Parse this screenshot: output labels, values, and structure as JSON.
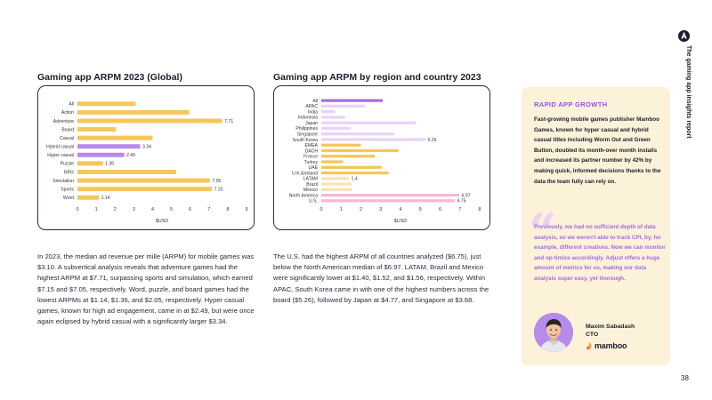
{
  "page": {
    "side_tab_label": "The gaming app insights report",
    "page_number": "38"
  },
  "charts_text": {
    "global_title": "Gaming app ARPM 2023 (Global)",
    "region_title": "Gaming app ARPM by region and country 2023"
  },
  "chart_data": [
    {
      "type": "bar",
      "orientation": "horizontal",
      "title": "Gaming app ARPM 2023 (Global)",
      "xlabel": "$USD",
      "xlim": [
        0,
        9
      ],
      "xticks": [
        0,
        1,
        2,
        3,
        4,
        5,
        6,
        7,
        8,
        9
      ],
      "grid": false,
      "categories": [
        "All",
        "Action",
        "Adventure",
        "Board",
        "Casual",
        "Hybrid casual",
        "Hyper casual",
        "Puzzle",
        "RPG",
        "Simulation",
        "Sports",
        "Word"
      ],
      "values": [
        3.1,
        5.95,
        7.71,
        2.05,
        4.0,
        3.34,
        2.49,
        1.36,
        5.25,
        7.05,
        7.15,
        1.14
      ],
      "labels": [
        "",
        "",
        "7.71",
        "",
        "",
        "3.34",
        "2.49",
        "1.36",
        "",
        "7.05",
        "7.15",
        "1.14"
      ],
      "colors": [
        "#f6c65a",
        "#f6c65a",
        "#f6c65a",
        "#f6c65a",
        "#f6c65a",
        "#b889ee",
        "#b889ee",
        "#f6c65a",
        "#f6c65a",
        "#f6c65a",
        "#f6c65a",
        "#f6c65a"
      ]
    },
    {
      "type": "bar",
      "orientation": "horizontal",
      "title": "Gaming app ARPM by region and country 2023",
      "xlabel": "$USD",
      "xlim": [
        0,
        8
      ],
      "xticks": [
        0,
        1,
        2,
        3,
        4,
        5,
        6,
        7,
        8
      ],
      "grid": false,
      "categories": [
        "All",
        "APAC",
        "India",
        "Indonesia",
        "Japan",
        "Philippines",
        "Singapore",
        "South Korea",
        "EMEA",
        "DACH",
        "France",
        "Turkey",
        "UAE",
        "U.K.&Ireland",
        "LATAM",
        "Brazil",
        "Mexico",
        "North America",
        "U.S."
      ],
      "values": [
        3.1,
        2.2,
        0.7,
        1.2,
        4.77,
        1.5,
        3.68,
        5.26,
        2.0,
        3.9,
        2.7,
        1.1,
        3.05,
        3.4,
        1.4,
        1.52,
        1.56,
        6.97,
        6.75
      ],
      "labels": [
        "",
        "",
        "",
        "",
        "",
        "",
        "",
        "5.26",
        "",
        "",
        "",
        "",
        "",
        "",
        "1.4",
        "",
        "",
        "6.97",
        "6.75"
      ],
      "colors": [
        "#a66ee8",
        "#e9d2f6",
        "#e9d2f6",
        "#e9d2f6",
        "#e9d2f6",
        "#e9d2f6",
        "#e9d2f6",
        "#e9d2f6",
        "#f6c65a",
        "#f6c65a",
        "#f6c65a",
        "#f6c65a",
        "#f6c65a",
        "#f6c65a",
        "#fbe2b0",
        "#fbe2b0",
        "#fbe2b0",
        "#f6b8d8",
        "#f6b8d8"
      ]
    }
  ],
  "paragraphs": {
    "global": "In 2023, the median ad revenue per mille (ARPM) for mobile games was $3.10. A subvertical analysis reveals that adventure games had the highest ARPM at $7.71, surpassing sports and simulation, which earned $7.15 and $7.05, respectively. Word, puzzle, and board games had the lowest ARPMs at $1.14, $1.36, and $2.05, respectively. Hyper casual games, known for high ad engagement, came in at $2.49, but were once again eclipsed by hybrid casual with a significantly larger $3.34.",
    "region": "The U.S. had the highest ARPM of all countries analyzed ($6.75), just below the North American median of $6.97. LATAM, Brazil and Mexico were significantly lower at $1.40, $1.52, and $1.56, respectively. Within APAC, South Korea came in with one of the highest numbers across the board ($5.26), followed by Japan at $4.77, and Singapore at $3.68."
  },
  "sidebar": {
    "heading": "RAPID APP GROWTH",
    "body": "Fast-growing mobile games publisher Mamboo Games, known for hyper casual and hybrid casual titles including Worm Out and Green Button, doubled its month-over month installs and increased its partner number by 42% by making quick, informed decisions thanks to the data the team fully can rely on.",
    "quote_mark": "“",
    "quote": "Previously, we had no sufficient depth of data analysis, so we weren't able to track CPI, by, for example, different creatives. Now we can monitor and op-timize accordingly. Adjust offers a huge amount of metrics for us, making our data analysis super easy, yet thorough.",
    "person_name": "Maxim Sabadash",
    "person_title": "CTO",
    "company": "mamboo"
  },
  "colors": {
    "yellow": "#f6c65a",
    "purple": "#a66ee8",
    "light_purple": "#e9d2f6",
    "pink": "#f6b8d8",
    "light_yellow": "#fbe2b0",
    "card_bg": "#fcf1d9",
    "accent_purple": "#8f55e0"
  }
}
